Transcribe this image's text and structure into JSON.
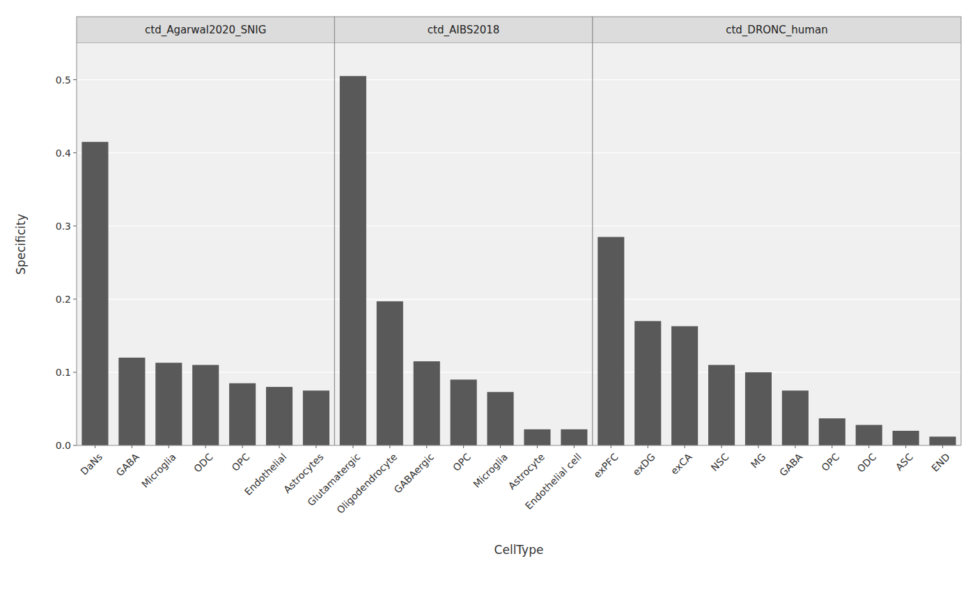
{
  "chart_data": [
    {
      "type": "bar",
      "title": "ctd_Agarwal2020_SNIG",
      "categories": [
        "DaNs",
        "GABA",
        "Microglia",
        "ODC",
        "OPC",
        "Endothelial",
        "Astrocytes"
      ],
      "values": [
        0.415,
        0.12,
        0.113,
        0.11,
        0.085,
        0.08,
        0.075
      ],
      "color": "#595959",
      "ylabel": "Specificity",
      "ylim": [
        0,
        0.55
      ],
      "yticks": [
        {
          "value": 0.0,
          "label": "0.0"
        },
        0.1,
        0.2,
        0.3,
        0.4,
        0.5
      ],
      "grid": true
    },
    {
      "type": "bar",
      "title": "ctd_AIBS2018",
      "categories": [
        "Glutamatergic",
        "Oligodendrocyte",
        "GABAergic",
        "OPC",
        "Microglia",
        "Astrocyte",
        "Endothelial cell"
      ],
      "values": [
        0.505,
        0.197,
        0.115,
        0.09,
        0.073,
        0.022,
        0.022
      ],
      "color": "#595959",
      "xlabel": "CellType",
      "ylim": [
        0,
        0.55
      ],
      "yticks": [
        {
          "value": 0.0,
          "label": "0.0"
        },
        0.1,
        0.2,
        0.3,
        0.4,
        0.5
      ],
      "grid": true,
      "tick_labels": "x"
    },
    {
      "type": "bar",
      "title": "ctd_DRONC_human",
      "categories": [
        "exPFC",
        "exDG",
        "exCA",
        "NSC",
        "MG",
        "GABA",
        "OPC",
        "ODC",
        "ASC",
        "END"
      ],
      "values": [
        0.285,
        0.17,
        0.163,
        0.11,
        0.1,
        0.075,
        0.037,
        0.028,
        0.02,
        0.012
      ],
      "color": "#595959",
      "ylim": [
        0,
        0.55
      ],
      "yticks": [
        {
          "value": 0.0,
          "label": "0.0"
        },
        0.1,
        0.2,
        0.3,
        0.4,
        0.5
      ],
      "grid": true,
      "tick_labels": "x"
    }
  ]
}
